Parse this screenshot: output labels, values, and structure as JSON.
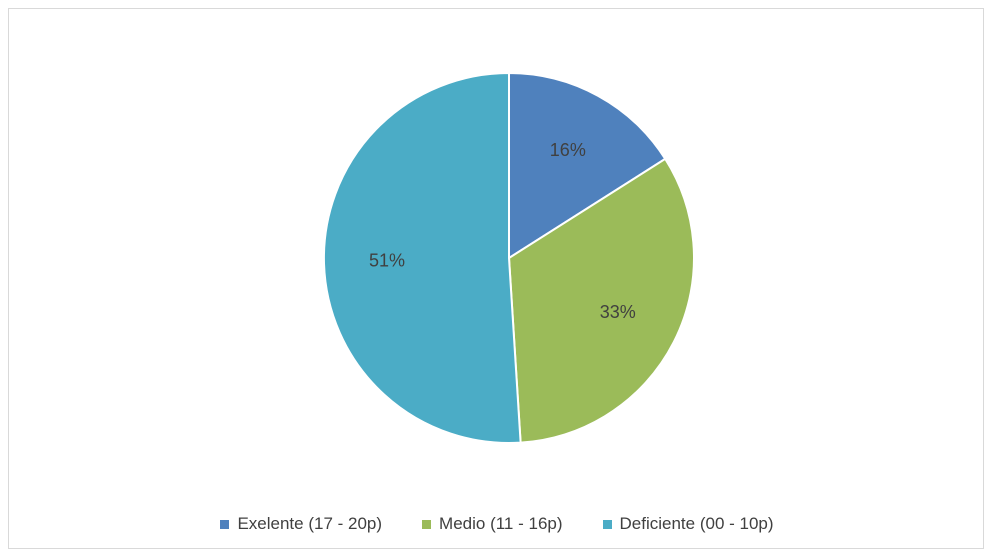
{
  "chart_data": {
    "type": "pie",
    "title": "",
    "slices": [
      {
        "label": "Exelente (17 - 20p)",
        "value": 16,
        "display": "16%",
        "color": "#4f81bd"
      },
      {
        "label": "Medio (11 - 16p)",
        "value": 33,
        "display": "33%",
        "color": "#9bbb59"
      },
      {
        "label": "Deficiente (00 - 10p)",
        "value": 51,
        "display": "51%",
        "color": "#4bacc6"
      }
    ],
    "start_angle_deg": 0,
    "direction": "clockwise",
    "legend_position": "bottom"
  }
}
